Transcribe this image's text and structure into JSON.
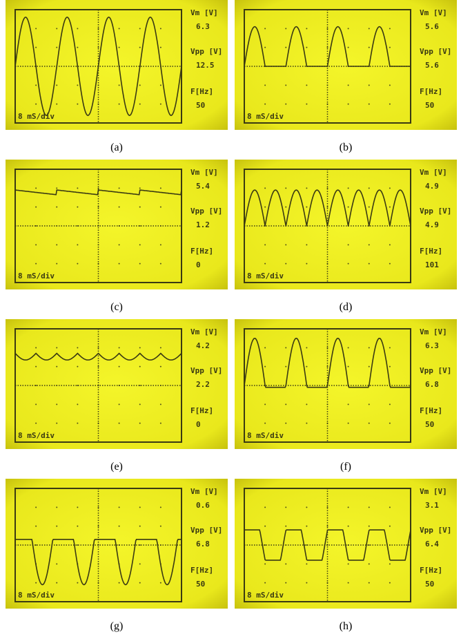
{
  "panels": [
    {
      "vm_label": "Vm [V]",
      "vm": "6.3",
      "vpp_label": "Vpp [V]",
      "vpp": "12.5",
      "f_label": "F[Hz]",
      "f": "50",
      "timebase": "8 mS/div",
      "caption": "(a)"
    },
    {
      "vm_label": "Vm [V]",
      "vm": "5.6",
      "vpp_label": "Vpp [V]",
      "vpp": "5.6",
      "f_label": "F[Hz]",
      "f": "50",
      "timebase": "8 mS/div",
      "caption": "(b)"
    },
    {
      "vm_label": "Vm [V]",
      "vm": "5.4",
      "vpp_label": "Vpp [V]",
      "vpp": "1.2",
      "f_label": "F[Hz]",
      "f": "0",
      "timebase": "8 mS/div",
      "caption": "(c)"
    },
    {
      "vm_label": "Vm [V]",
      "vm": "4.9",
      "vpp_label": "Vpp [V]",
      "vpp": "4.9",
      "f_label": "F[Hz]",
      "f": "101",
      "timebase": "8 mS/div",
      "caption": "(d)"
    },
    {
      "vm_label": "Vm [V]",
      "vm": "4.2",
      "vpp_label": "Vpp [V]",
      "vpp": "2.2",
      "f_label": "F[Hz]",
      "f": "0",
      "timebase": "8 mS/div",
      "caption": "(e)"
    },
    {
      "vm_label": "Vm [V]",
      "vm": "6.3",
      "vpp_label": "Vpp [V]",
      "vpp": "6.8",
      "f_label": "F[Hz]",
      "f": "50",
      "timebase": "8 mS/div",
      "caption": "(f)"
    },
    {
      "vm_label": "Vm [V]",
      "vm": "0.6",
      "vpp_label": "Vpp [V]",
      "vpp": "6.8",
      "f_label": "F[Hz]",
      "f": "50",
      "timebase": "8 mS/div",
      "caption": "(g)"
    },
    {
      "vm_label": "Vm [V]",
      "vm": "3.1",
      "vpp_label": "Vpp [V]",
      "vpp": "6.4",
      "f_label": "F[Hz]",
      "f": "50",
      "timebase": "8 mS/div",
      "caption": "(h)"
    }
  ]
}
